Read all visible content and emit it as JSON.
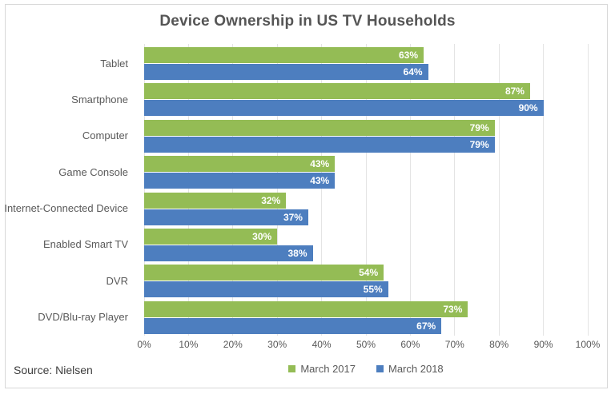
{
  "chart_data": {
    "type": "bar",
    "orientation": "horizontal",
    "title": "Device Ownership in US TV Households",
    "categories": [
      "Tablet",
      "Smartphone",
      "Computer",
      "Game Console",
      "Internet-Connected Device",
      "Enabled Smart TV",
      "DVR",
      "DVD/Blu-ray Player"
    ],
    "series": [
      {
        "name": "March 2017",
        "color": "#94bc55",
        "values": [
          63,
          87,
          79,
          43,
          32,
          30,
          54,
          73
        ]
      },
      {
        "name": "March 2018",
        "color": "#4d7ebf",
        "values": [
          64,
          90,
          79,
          43,
          37,
          38,
          55,
          67
        ]
      }
    ],
    "value_suffix": "%",
    "x_ticks": [
      "0%",
      "10%",
      "20%",
      "30%",
      "40%",
      "50%",
      "60%",
      "70%",
      "80%",
      "90%",
      "100%"
    ],
    "xlim": [
      0,
      100
    ],
    "grid": "vertical",
    "legend_position": "bottom"
  },
  "source_note": "Source: Nielsen",
  "colors": {
    "march_2017_green": "#94bc55",
    "march_2018_blue": "#4d7ebf",
    "title_text": "#555555",
    "axis_text": "#595959",
    "gridline": "#e4e4e4",
    "value_label_text": "#ffffff",
    "frame_border": "#d8d8d8"
  }
}
